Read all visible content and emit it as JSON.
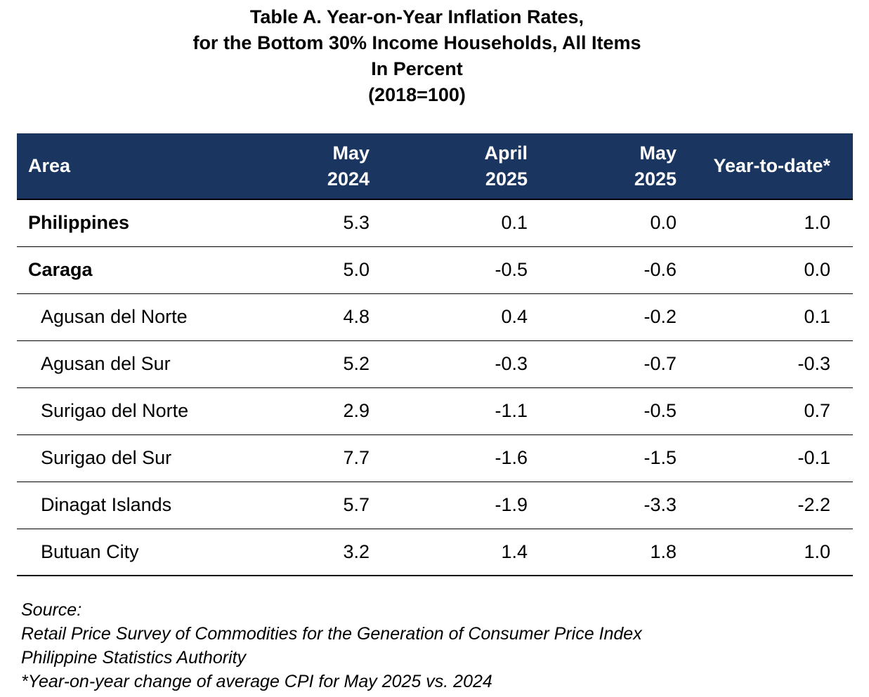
{
  "title": {
    "line1": "Table A. Year-on-Year Inflation Rates,",
    "line2": "for the Bottom 30% Income Households, All Items",
    "line3": "In Percent",
    "line4": "(2018=100)"
  },
  "columns": {
    "area": "Area",
    "may2024": [
      "May",
      "2024"
    ],
    "april2025": [
      "April",
      "2025"
    ],
    "may2025": [
      "May",
      "2025"
    ],
    "ytd": "Year-to-date*"
  },
  "rows": [
    {
      "area": "Philippines",
      "may2024": "5.3",
      "april2025": "0.1",
      "may2025": "0.0",
      "ytd": "1.0"
    },
    {
      "area": "Caraga",
      "may2024": "5.0",
      "april2025": "-0.5",
      "may2025": "-0.6",
      "ytd": "0.0"
    },
    {
      "area": "Agusan del Norte",
      "may2024": "4.8",
      "april2025": "0.4",
      "may2025": "-0.2",
      "ytd": "0.1"
    },
    {
      "area": "Agusan del Sur",
      "may2024": "5.2",
      "april2025": "-0.3",
      "may2025": "-0.7",
      "ytd": "-0.3"
    },
    {
      "area": "Surigao del Norte",
      "may2024": "2.9",
      "april2025": "-1.1",
      "may2025": "-0.5",
      "ytd": "0.7"
    },
    {
      "area": "Surigao del Sur",
      "may2024": "7.7",
      "april2025": "-1.6",
      "may2025": "-1.5",
      "ytd": "-0.1"
    },
    {
      "area": "Dinagat Islands",
      "may2024": "5.7",
      "april2025": "-1.9",
      "may2025": "-3.3",
      "ytd": "-2.2"
    },
    {
      "area": "Butuan City",
      "may2024": "3.2",
      "april2025": "1.4",
      "may2025": "1.8",
      "ytd": "1.0"
    }
  ],
  "notes": {
    "source_label": "Source:",
    "line1": "Retail Price Survey of Commodities for the Generation of Consumer Price Index",
    "line2": "Philippine Statistics Authority",
    "line3": "*Year-on-year change of average CPI for May 2025 vs. 2024"
  },
  "colors": {
    "header_background": "#1a355f",
    "header_text": "#ffffff"
  }
}
